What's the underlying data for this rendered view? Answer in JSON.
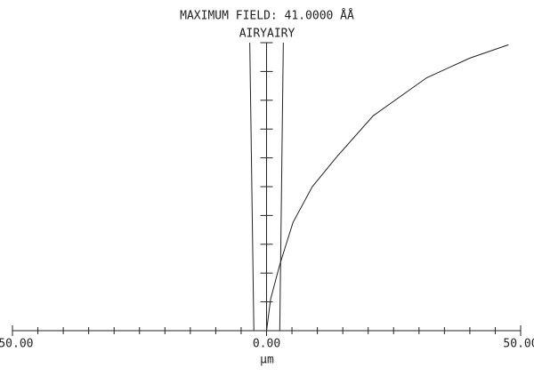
{
  "chart_data": {
    "type": "line",
    "title": "MAXIMUM FIELD: 41.0000 ÅÅ",
    "subtitle": "AIRYAIRY",
    "x_label": "μm",
    "xlim": [
      -50,
      50
    ],
    "ylim": [
      0,
      41
    ],
    "xticks": [
      {
        "value": -50,
        "label": "-50.00"
      },
      {
        "value": 0,
        "label": "0.00"
      },
      {
        "value": 50,
        "label": "50.00"
      }
    ],
    "xminorticks": [
      -45,
      -40,
      -35,
      -30,
      -25,
      -20,
      -15,
      -10,
      -5,
      5,
      10,
      15,
      20,
      25,
      30,
      35,
      40,
      45
    ],
    "yticks": [
      0,
      4.1,
      8.2,
      12.3,
      16.4,
      20.5,
      24.6,
      28.7,
      32.8,
      36.9,
      41
    ],
    "series": [
      {
        "color": "#222222",
        "x": [
          0,
          0.8,
          2.6,
          5.2,
          9,
          14,
          21,
          31.5,
          40,
          47.6
        ],
        "values": [
          0,
          4.5,
          9.4,
          15.4,
          20.5,
          24.9,
          30.6,
          36,
          38.8,
          40.7
        ]
      },
      {
        "color": "#222222",
        "x": [
          -2.5,
          -3.3
        ],
        "values": [
          0,
          41
        ]
      },
      {
        "color": "#222222",
        "x": [
          2.6,
          3.3
        ],
        "values": [
          0,
          41
        ]
      }
    ]
  }
}
